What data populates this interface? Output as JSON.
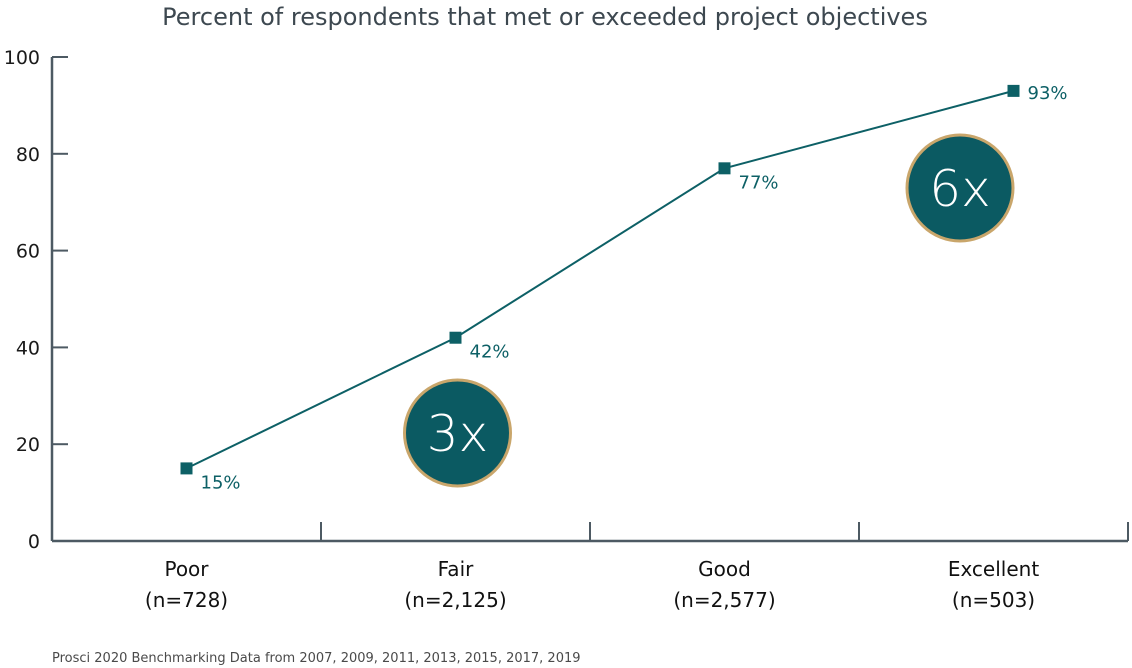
{
  "chart_data": {
    "type": "line",
    "title": "Percent of respondents that met or exceeded project objectives",
    "xlabel": "",
    "ylabel": "",
    "ylim": [
      0,
      100
    ],
    "yticks": [
      0,
      20,
      40,
      60,
      80,
      100
    ],
    "grid": false,
    "categories": [
      {
        "label": "Poor",
        "n": "(n=728)"
      },
      {
        "label": "Fair",
        "n": "(n=2,125)"
      },
      {
        "label": "Good",
        "n": "(n=2,577)"
      },
      {
        "label": "Excellent",
        "n": "(n=503)"
      }
    ],
    "series": [
      {
        "name": "Met or exceeded objectives",
        "values": [
          15,
          42,
          77,
          93
        ],
        "labels": [
          "15%",
          "42%",
          "77%",
          "93%"
        ]
      }
    ],
    "annotations": [
      {
        "text": "3x",
        "near_category": "Fair"
      },
      {
        "text": "6x",
        "near_category": "Excellent"
      }
    ],
    "source": "Prosci 2020 Benchmarking Data from 2007, 2009, 2011, 2013, 2015, 2017, 2019"
  },
  "colors": {
    "line": "#0d6066",
    "badge_fill": "#0b5a62",
    "badge_ring": "#c9a66b",
    "axis": "#4d5a63"
  }
}
